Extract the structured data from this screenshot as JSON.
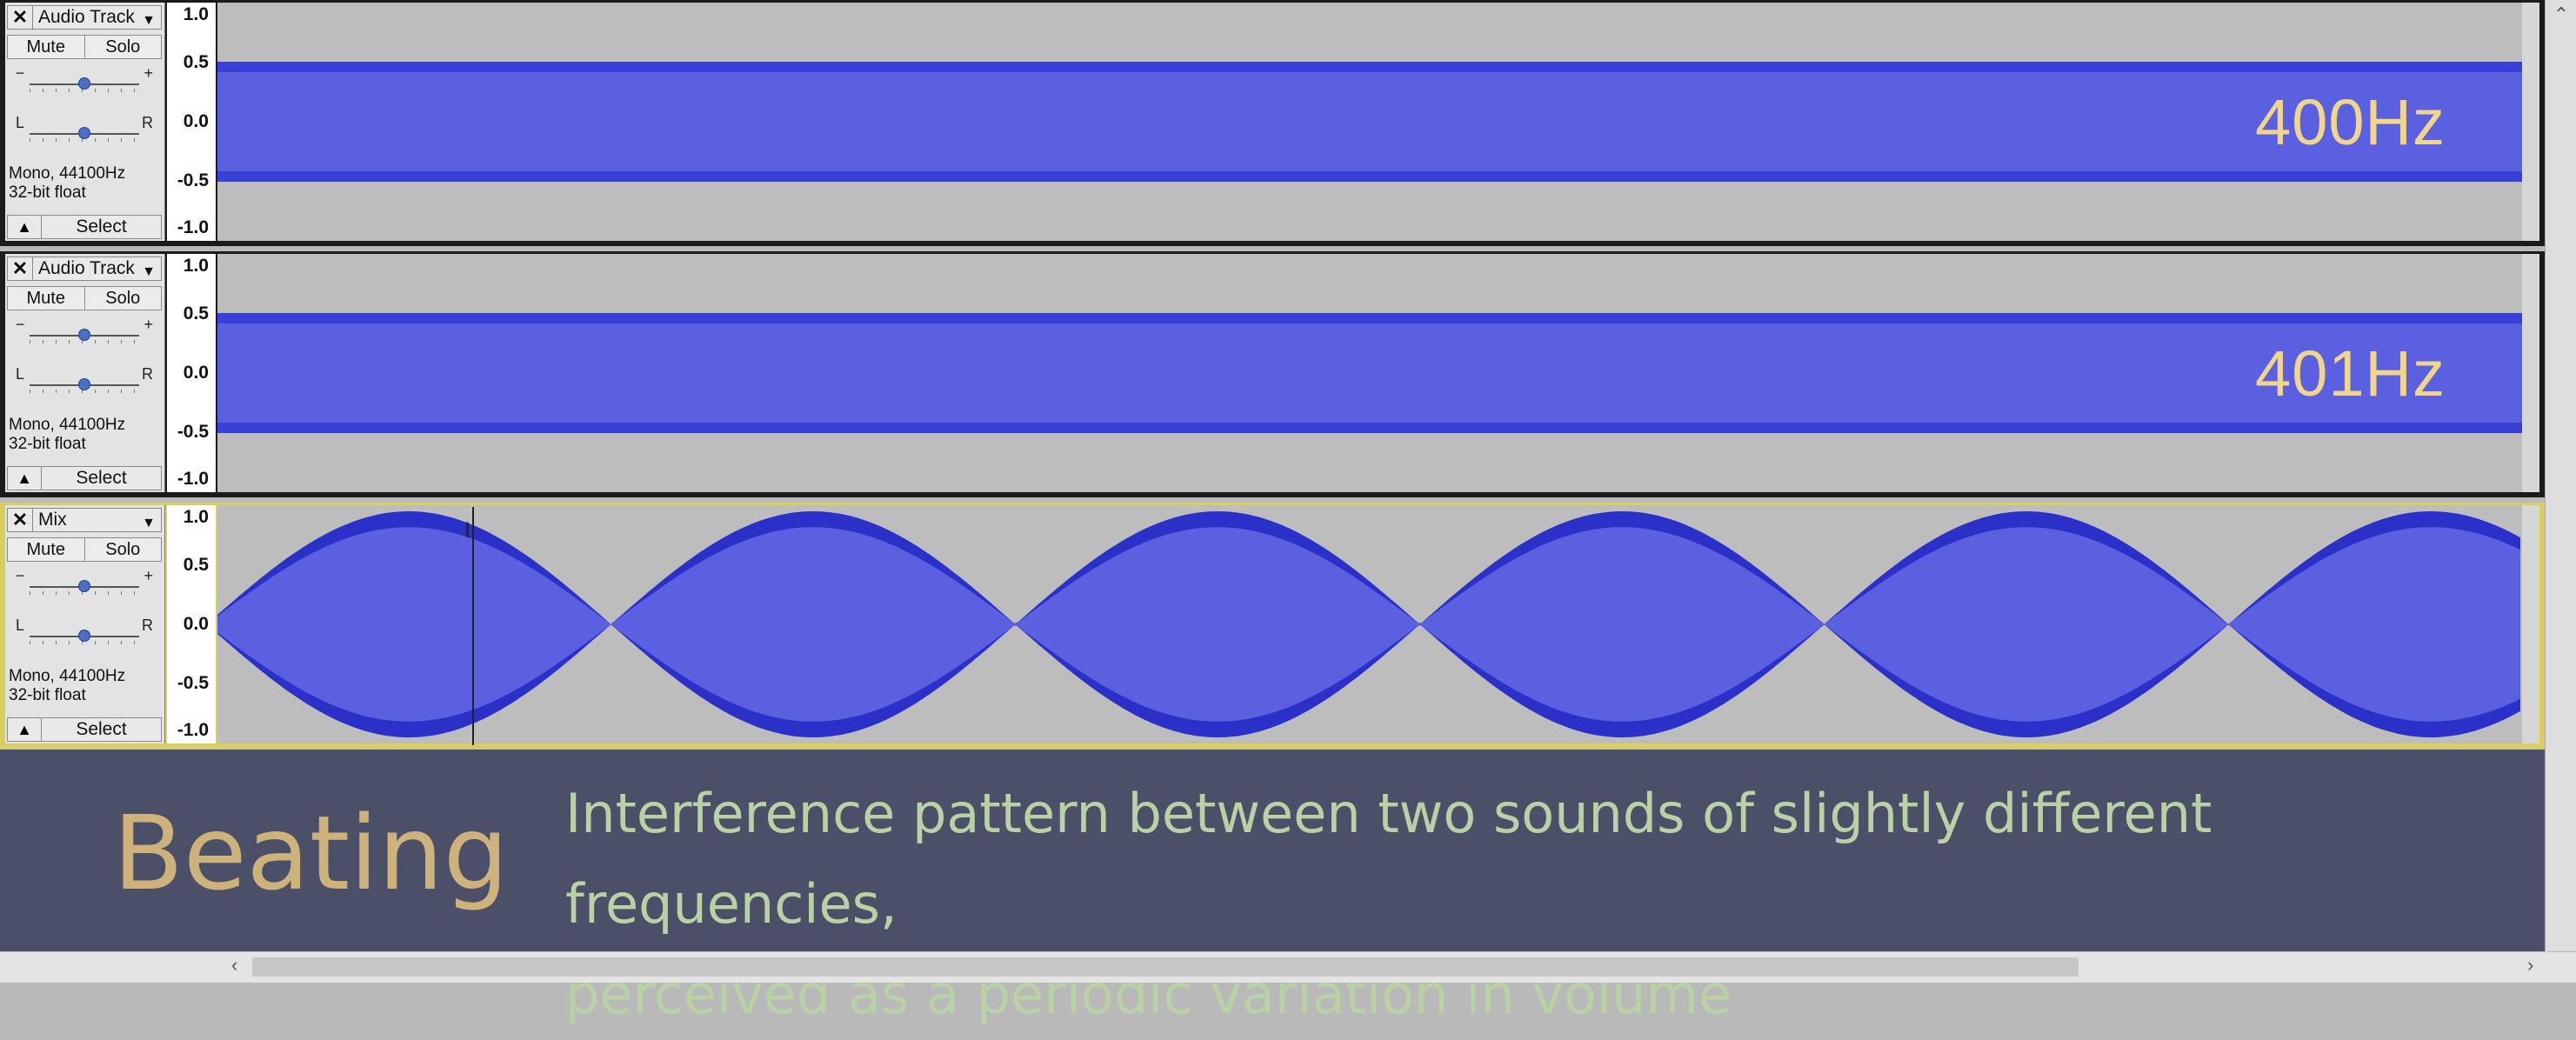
{
  "tracks": [
    {
      "name": "Audio Track",
      "mute": "Mute",
      "solo": "Solo",
      "gain_minus": "−",
      "gain_plus": "+",
      "pan_left": "L",
      "pan_right": "R",
      "format_line1": "Mono, 44100Hz",
      "format_line2": "32-bit float",
      "select": "Select",
      "freq_label": "400Hz",
      "ruler": [
        "1.0",
        "0.5",
        "0.0",
        "-0.5",
        "-1.0"
      ]
    },
    {
      "name": "Audio Track",
      "mute": "Mute",
      "solo": "Solo",
      "gain_minus": "−",
      "gain_plus": "+",
      "pan_left": "L",
      "pan_right": "R",
      "format_line1": "Mono, 44100Hz",
      "format_line2": "32-bit float",
      "select": "Select",
      "freq_label": "401Hz",
      "ruler": [
        "1.0",
        "0.5",
        "0.0",
        "-0.5",
        "-1.0"
      ]
    },
    {
      "name": "Mix",
      "mute": "Mute",
      "solo": "Solo",
      "gain_minus": "−",
      "gain_plus": "+",
      "pan_left": "L",
      "pan_right": "R",
      "format_line1": "Mono, 44100Hz",
      "format_line2": "32-bit float",
      "select": "Select",
      "freq_label": "",
      "ruler": [
        "1.0",
        "0.5",
        "0.0",
        "-0.5",
        "-1.0"
      ]
    }
  ],
  "caption": {
    "term": "Beating",
    "definition_line1": "Interference pattern between two sounds of slightly different frequencies,",
    "definition_line2": "perceived as a periodic variation in volume"
  },
  "icons": {
    "close": "close-icon",
    "dropdown": "chevron-down-icon",
    "collapse": "collapse-up-icon"
  },
  "colors": {
    "waveform": "#5b60e0",
    "waveform_edge": "#2a30c8",
    "track_background": "#bdbdbd",
    "caption_background": "#4b4f68",
    "term_color": "#cdb37b",
    "definition_color": "#b9d2a5"
  },
  "waveform": {
    "steady_amplitude": 0.5,
    "beat_amplitude": 1.0,
    "beat_crossings_visible": 6
  }
}
